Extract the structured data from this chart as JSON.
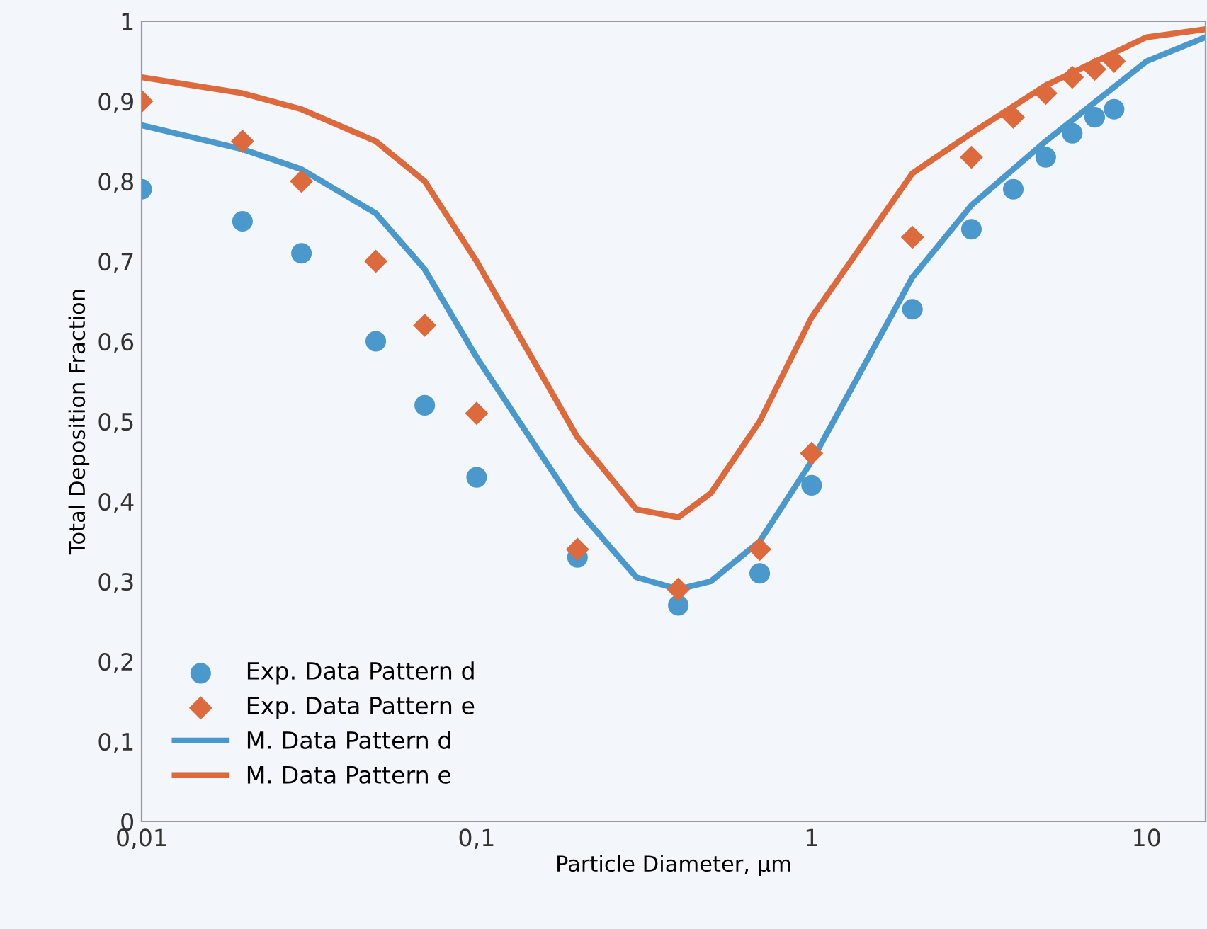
{
  "chart_data": {
    "type": "scatter",
    "xlabel": "Particle Diameter, µm",
    "ylabel": "Total Deposition Fraction",
    "log": "x",
    "xlim": [
      0.01,
      15
    ],
    "xticks": [
      {
        "value": 0.01,
        "label": "0,01"
      },
      {
        "value": 0.1,
        "label": "0,1"
      },
      1,
      10
    ],
    "ylim": [
      0,
      1
    ],
    "yticks": [
      0,
      {
        "value": 0.1,
        "label": "0,1"
      },
      {
        "value": 0.2,
        "label": "0,2"
      },
      {
        "value": 0.3,
        "label": "0,3"
      },
      {
        "value": 0.4,
        "label": "0,4"
      },
      {
        "value": 0.5,
        "label": "0,5"
      },
      {
        "value": 0.6,
        "label": "0,6"
      },
      {
        "value": 0.7,
        "label": "0,7"
      },
      {
        "value": 0.8,
        "label": "0,8"
      },
      {
        "value": 0.9,
        "label": "0,9"
      },
      1
    ],
    "grid": false,
    "legend": "bottom left",
    "series": [
      {
        "name": "Exp. Data Pattern d",
        "marker": "circle",
        "color": "#4a98cc",
        "x": [
          0.01,
          0.02,
          0.03,
          0.05,
          0.07,
          0.1,
          0.2,
          0.4,
          0.7,
          1,
          2,
          3,
          4,
          5,
          6,
          7,
          8
        ],
        "values": [
          0.79,
          0.75,
          0.71,
          0.6,
          0.52,
          0.43,
          0.33,
          0.27,
          0.31,
          0.42,
          0.64,
          0.74,
          0.79,
          0.83,
          0.86,
          0.88,
          0.89
        ]
      },
      {
        "name": "Exp. Data Pattern e",
        "marker": "diamond",
        "color": "#dd6a3c",
        "x": [
          0.01,
          0.02,
          0.03,
          0.05,
          0.07,
          0.1,
          0.2,
          0.4,
          0.7,
          1,
          2,
          3,
          4,
          5,
          6,
          7,
          8
        ],
        "values": [
          0.9,
          0.85,
          0.8,
          0.7,
          0.62,
          0.51,
          0.34,
          0.29,
          0.34,
          0.46,
          0.73,
          0.83,
          0.88,
          0.91,
          0.93,
          0.94,
          0.95
        ]
      },
      {
        "name": "M. Data Pattern d",
        "type": "line",
        "color": "#4a98cc",
        "x": [
          0.01,
          0.02,
          0.03,
          0.05,
          0.07,
          0.1,
          0.2,
          0.3,
          0.4,
          0.5,
          0.7,
          1,
          2,
          3,
          5,
          10,
          15
        ],
        "values": [
          0.87,
          0.84,
          0.815,
          0.76,
          0.69,
          0.58,
          0.39,
          0.305,
          0.29,
          0.3,
          0.35,
          0.45,
          0.68,
          0.77,
          0.85,
          0.95,
          0.98
        ]
      },
      {
        "name": "M. Data Pattern e",
        "type": "line",
        "color": "#dd6a3c",
        "x": [
          0.01,
          0.02,
          0.03,
          0.05,
          0.07,
          0.1,
          0.2,
          0.3,
          0.4,
          0.5,
          0.7,
          1,
          2,
          3,
          5,
          10,
          15
        ],
        "values": [
          0.93,
          0.91,
          0.89,
          0.85,
          0.8,
          0.7,
          0.48,
          0.39,
          0.38,
          0.41,
          0.5,
          0.63,
          0.81,
          0.86,
          0.92,
          0.98,
          0.99
        ]
      }
    ]
  }
}
